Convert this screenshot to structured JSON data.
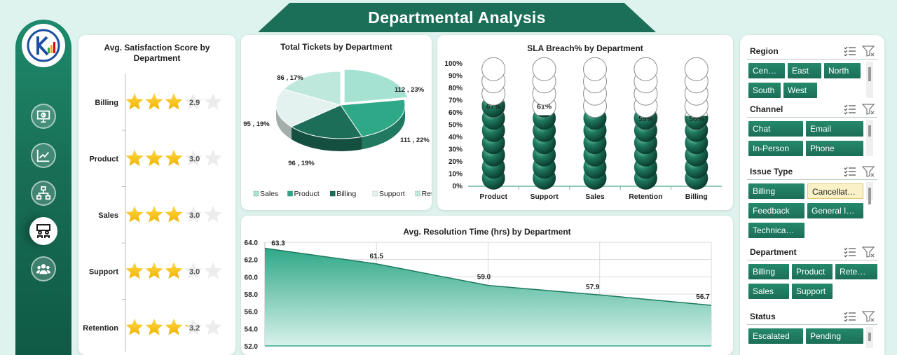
{
  "header": {
    "title": "Departmental Analysis"
  },
  "colors": {
    "brand_dark": "#1b6e57",
    "brand_mid": "#2a9a7b",
    "star": "#f6c21a",
    "background": "#dff3ee"
  },
  "sidebar": {
    "items": [
      {
        "name": "presentation-icon",
        "active": false
      },
      {
        "name": "trend-chart-icon",
        "active": false
      },
      {
        "name": "hierarchy-icon",
        "active": false
      },
      {
        "name": "meeting-icon",
        "active": true
      },
      {
        "name": "group-icon",
        "active": false
      }
    ]
  },
  "satisfaction": {
    "title": "Avg. Satisfaction Score by Department",
    "chart_data": {
      "type": "bar",
      "title": "Avg. Satisfaction Score by Department",
      "categories": [
        "Billing",
        "Product",
        "Sales",
        "Support",
        "Retention"
      ],
      "values": [
        2.9,
        3.0,
        3.0,
        3.0,
        3.2
      ],
      "labels": [
        "2.9",
        "3.0",
        "3.0",
        "3.0",
        "3.2"
      ],
      "max": 5,
      "marker": "star"
    }
  },
  "tickets": {
    "title": "Total Tickets by Department",
    "chart_data": {
      "type": "pie",
      "title": "Total Tickets by Department",
      "categories": [
        "Sales",
        "Product",
        "Billing",
        "Support",
        "Retention"
      ],
      "values": [
        112,
        111,
        96,
        95,
        86
      ],
      "percents": [
        23,
        22,
        19,
        19,
        17
      ],
      "labels": [
        "112 , 23%",
        "111 , 22%",
        "96 , 19%",
        "95 , 19%",
        "86 , 17%"
      ],
      "colors": [
        "#a6e2d2",
        "#2fa888",
        "#1c6e58",
        "#e3f2ee",
        "#bfe8dc"
      ],
      "legend": "bottom"
    }
  },
  "sla": {
    "title": "SLA Breach% by Department",
    "chart_data": {
      "type": "bar",
      "title": "SLA Breach% by Department",
      "categories": [
        "Product",
        "Support",
        "Sales",
        "Retention",
        "Billing"
      ],
      "values": [
        67,
        61,
        60,
        59,
        56
      ],
      "labels": [
        "67%",
        "61%",
        "60%",
        "59%",
        "56%"
      ],
      "ylim": [
        0,
        100
      ],
      "yticks": [
        "0%",
        "10%",
        "20%",
        "30%",
        "40%",
        "50%",
        "60%",
        "70%",
        "80%",
        "90%",
        "100%"
      ],
      "marker": "sphere"
    }
  },
  "resolution": {
    "title": "Avg. Resolution Time (hrs) by Department",
    "chart_data": {
      "type": "area",
      "title": "Avg. Resolution Time (hrs) by Department",
      "values": [
        63.3,
        61.5,
        59.0,
        57.9,
        56.7
      ],
      "labels": [
        "63.3",
        "61.5",
        "59.0",
        "57.9",
        "56.7"
      ],
      "ylim": [
        52,
        64
      ],
      "yticks": [
        "52.0",
        "54.0",
        "56.0",
        "58.0",
        "60.0",
        "62.0",
        "64.0"
      ],
      "grid": true
    }
  },
  "slicers": [
    {
      "label": "Region",
      "options": [
        {
          "text": "Cen…",
          "selected": false
        },
        {
          "text": "East",
          "selected": false
        },
        {
          "text": "North",
          "selected": false
        },
        {
          "text": "South",
          "selected": false
        },
        {
          "text": "West",
          "selected": false
        }
      ]
    },
    {
      "label": "Channel",
      "options": [
        {
          "text": "Chat",
          "selected": false
        },
        {
          "text": "Email",
          "selected": false
        },
        {
          "text": "In-Person",
          "selected": false
        },
        {
          "text": "Phone",
          "selected": false
        }
      ]
    },
    {
      "label": "Issue Type",
      "options": [
        {
          "text": "Billing",
          "selected": false
        },
        {
          "text": "Cancellat…",
          "selected": true
        },
        {
          "text": "Feedback",
          "selected": false
        },
        {
          "text": "General I…",
          "selected": false
        },
        {
          "text": "Technica…",
          "selected": false
        }
      ]
    },
    {
      "label": "Department",
      "options": [
        {
          "text": "Billing",
          "selected": false
        },
        {
          "text": "Product",
          "selected": false
        },
        {
          "text": "Rete…",
          "selected": false
        },
        {
          "text": "Sales",
          "selected": false
        },
        {
          "text": "Support",
          "selected": false
        }
      ]
    },
    {
      "label": "Status",
      "options": [
        {
          "text": "Escalated",
          "selected": false
        },
        {
          "text": "Pending",
          "selected": false
        }
      ]
    }
  ]
}
